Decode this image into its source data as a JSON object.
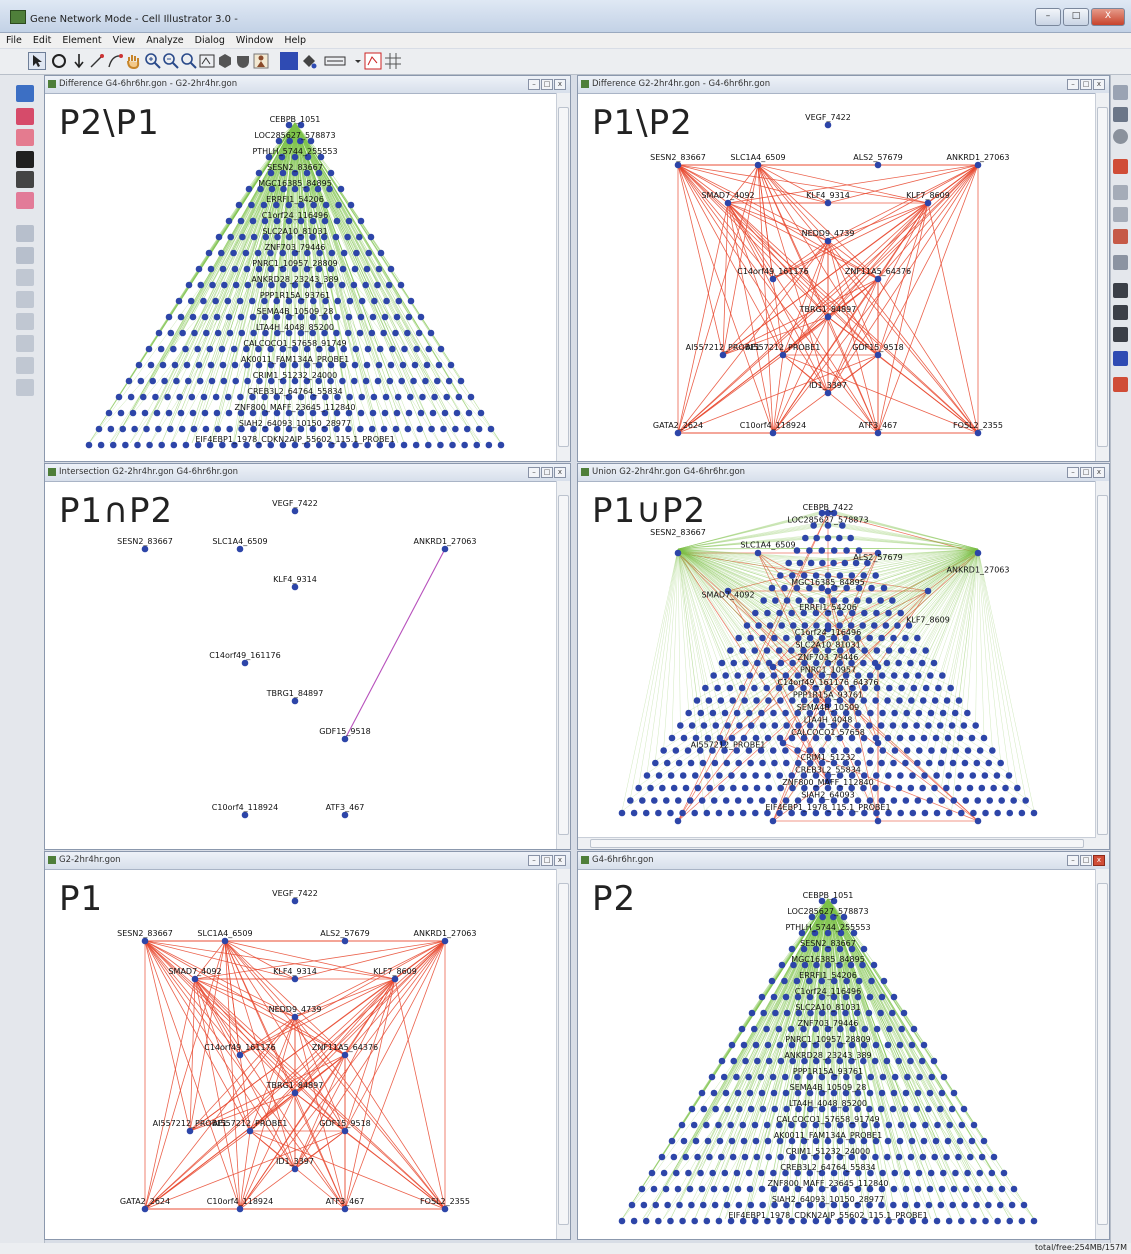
{
  "window": {
    "title": "Gene Network Mode - Cell Illustrator 3.0 -",
    "controls": [
      "–",
      "□",
      "X"
    ]
  },
  "menu": [
    "File",
    "Edit",
    "Element",
    "View",
    "Analyze",
    "Dialog",
    "Window",
    "Help"
  ],
  "status": "total/free:254MB/157M",
  "colors": {
    "node": "#2d45a8",
    "edge_green": "#7ec24a",
    "edge_red": "#e8452c",
    "edge_purple": "#b347b8"
  },
  "panels": [
    {
      "id": "p2-minus-p1",
      "title": "Difference G4-6hr6hr.gon - G2-2hr4hr.gon",
      "label": "P2\\P1",
      "kind": "pyramid",
      "labels": [
        "CEBPB_1051",
        "LOC285627_578873",
        "PTHLH_5744_255553",
        "SESN2_83667",
        "MGC16385_84895",
        "ERRFI1_54206",
        "C1orf24_116496",
        "SLC2A10_81031",
        "ZNF703_79446",
        "PNRC1_10957_28809",
        "ANKRD28_23243_389",
        "PPP1R15A_93761",
        "SEMA4B_10509_28",
        "LTA4H_4048_85200",
        "CALCOCO1_57658_91749",
        "AK0011_FAM134A_PROBE1",
        "CRIM1_51232_24000",
        "CREB3L2_64764_55834",
        "ZNF800_MAFF_23645_112840",
        "SIAH2_64093_10150_28977",
        "EIF4EBP1_1978_CDKN2AIP_55602_115.1_PROBE1"
      ]
    },
    {
      "id": "p1-minus-p2",
      "title": "Difference G2-2hr4hr.gon - G4-6hr6hr.gon",
      "label": "P1\\P2",
      "kind": "star",
      "labels": [
        "VEGF_7422",
        "SESN2_83667",
        "SLC1A4_6509",
        "ALS2_57679",
        "ANKRD1_27063",
        "SMAD7_4092",
        "KLF4_9314",
        "KLF7_8609",
        "NEDD9_4739",
        "C14orf49_161176",
        "ZNF11A5_64376",
        "TBRG1_84897",
        "AI557212_PROBE1",
        "AI557212_PROBE1",
        "GDF15_9518",
        "ID1_3397",
        "GATA2_2624",
        "C10orf4_118924",
        "ATF3_467",
        "FOSL2_2355"
      ]
    },
    {
      "id": "p1-intersect-p2",
      "title": "Intersection G2-2hr4hr.gon G4-6hr6hr.gon",
      "label": "P1∩P2",
      "kind": "intersect",
      "labels": [
        "VEGF_7422",
        "SESN2_83667",
        "SLC1A4_6509",
        "ANKRD1_27063",
        "KLF4_9314",
        "C14orf49_161176",
        "TBRG1_84897",
        "GDF15_9518",
        "C10orf4_118924",
        "ATF3_467"
      ]
    },
    {
      "id": "p1-union-p2",
      "title": "Union G2-2hr4hr.gon G4-6hr6hr.gon",
      "label": "P1∪P2",
      "kind": "union",
      "labels": [
        "CEBPB_7422",
        "LOC285627_578873",
        "SESN2_83667",
        "SLC1A4_6509",
        "ALS2_57679",
        "ANKRD1_27063",
        "MGC16385_84895",
        "SMAD7_4092",
        "ERRFI1_54206",
        "KLF7_8609",
        "C1orf24_116496",
        "SLC2A10_81031",
        "ZNF703_79446",
        "PNRC1_10957",
        "C14orf49_161176_64376",
        "PPP1R15A_93761",
        "SEMA4B_10509",
        "LTA4H_4048",
        "CALCOCO1_57658",
        "AI557212_PROBE1",
        "CRIM1_51232",
        "CREB3L2_55834",
        "ZNF800_MAFF_112840",
        "SIAH2_64093",
        "EIF4EBP1_1978_115.1_PROBE1"
      ]
    },
    {
      "id": "p1",
      "title": "G2-2hr4hr.gon",
      "label": "P1",
      "kind": "star",
      "labels": [
        "VEGF_7422",
        "SESN2_83667",
        "SLC1A4_6509",
        "ALS2_57679",
        "ANKRD1_27063",
        "SMAD7_4092",
        "KLF4_9314",
        "KLF7_8609",
        "NEDD9_4739",
        "C14orf49_161176",
        "ZNF11A5_64376",
        "TBRG1_84897",
        "AI557212_PROBE1",
        "AI557212_PROBE1",
        "GDF15_9518",
        "ID1_3397",
        "GATA2_2624",
        "C10orf4_118924",
        "ATF3_467",
        "FOSL2_2355"
      ]
    },
    {
      "id": "p2",
      "title": "G4-6hr6hr.gon",
      "label": "P2",
      "kind": "pyramid",
      "labels": [
        "CEBPB_1051",
        "LOC285627_578873",
        "PTHLH_5744_255553",
        "SESN2_83667",
        "MGC16385_84895",
        "ERRFI1_54206",
        "C1orf24_116496",
        "SLC2A10_81031",
        "ZNF703_79446",
        "PNRC1_10957_28809",
        "ANKRD28_23243_389",
        "PPP1R15A_93761",
        "SEMA4B_10509_28",
        "LTA4H_4048_85200",
        "CALCOCO1_57658_91749",
        "AK0011_FAM134A_PROBE1",
        "CRIM1_51232_24000",
        "CREB3L2_64764_55834",
        "ZNF800_MAFF_23645_112840",
        "SIAH2_64093_10150_28977",
        "EIF4EBP1_1978_CDKN2AIP_55602_115.1_PROBE1"
      ]
    }
  ]
}
